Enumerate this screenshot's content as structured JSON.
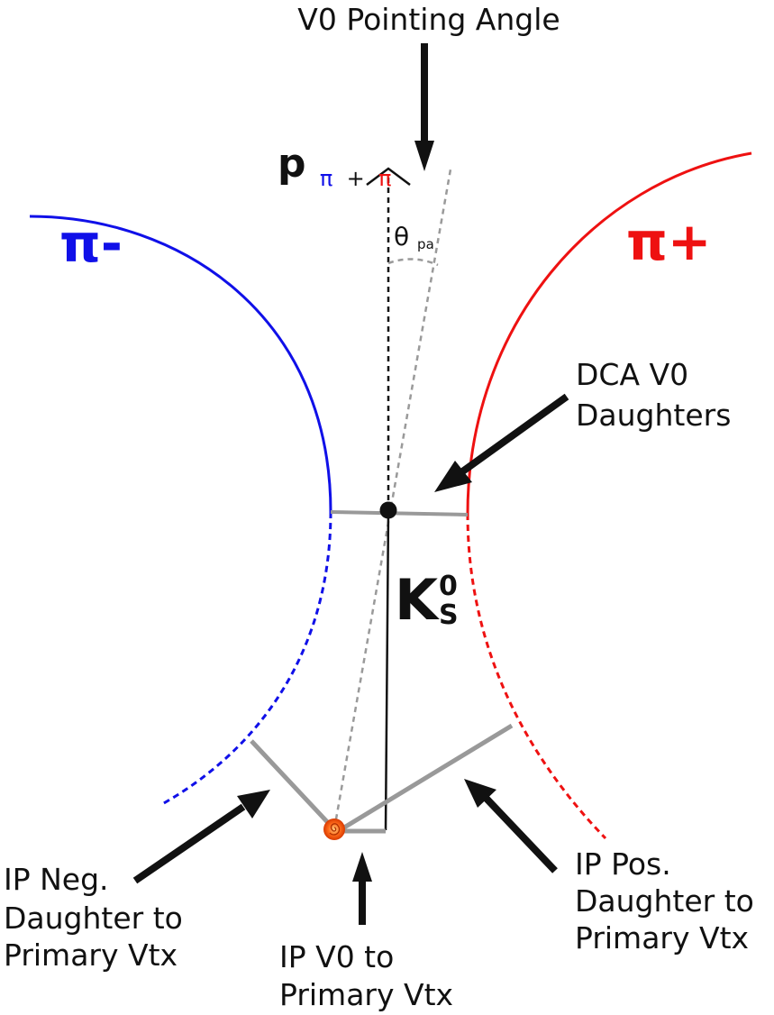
{
  "labels": {
    "pointing_angle": "V0 Pointing Angle",
    "momentum_symbol": "p",
    "momentum_sub_pi1": "π",
    "momentum_sub_plus": "+",
    "momentum_sub_pi2": "π",
    "theta_symbol": "θ",
    "theta_sub": "pa",
    "pi_minus": "π-",
    "pi_plus": "π+",
    "dca_line1": "DCA V0",
    "dca_line2": "Daughters",
    "kaon_symbol": "K",
    "kaon_sup": "0",
    "kaon_sub": "S",
    "ip_neg_line1": "IP Neg.",
    "ip_neg_line2": "Daughter to",
    "ip_neg_line3": "Primary Vtx",
    "ip_v0_line1": "IP V0 to",
    "ip_v0_line2": "Primary Vtx",
    "ip_pos_line1": "IP Pos.",
    "ip_pos_line2": "Daughter to",
    "ip_pos_line3": "Primary Vtx"
  },
  "colors": {
    "pi_minus": "#1010e8",
    "pi_plus": "#ee1111",
    "impact_lines": "#999999",
    "arrows": "#111111",
    "primary_vertex": "#f05010"
  }
}
